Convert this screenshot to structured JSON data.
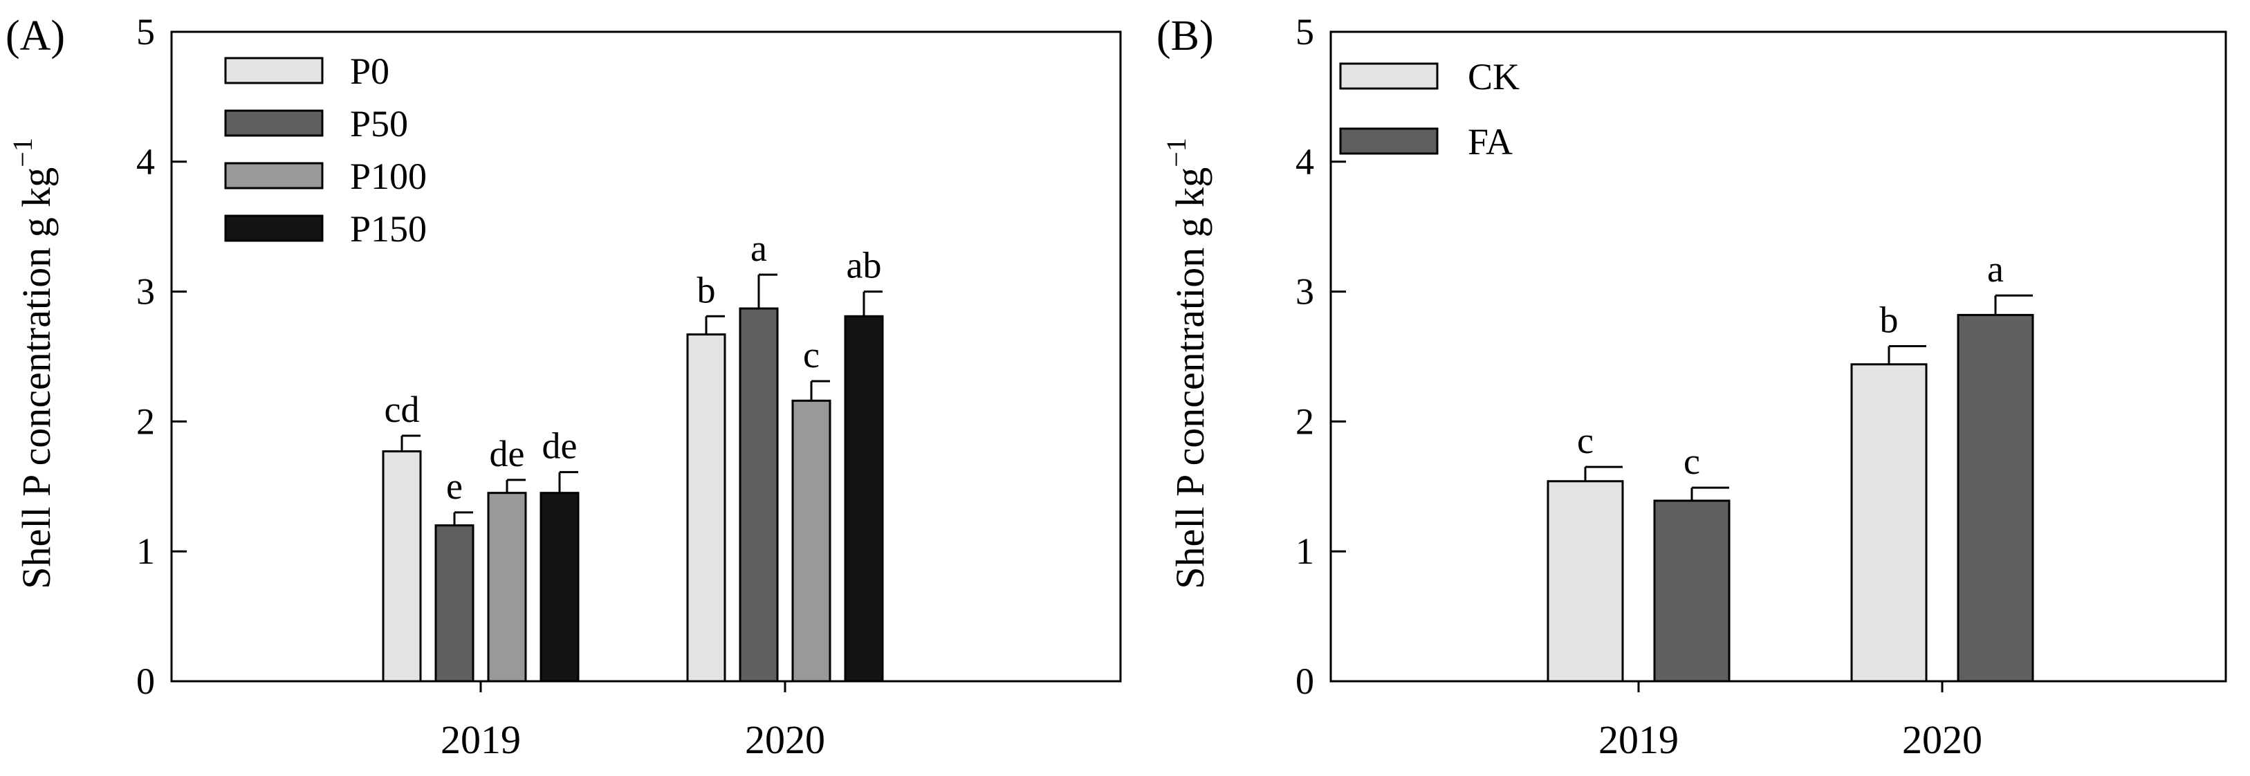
{
  "chart_data": [
    {
      "type": "bar",
      "panel_label": "(A)",
      "title": "",
      "xlabel": "",
      "ylabel": "Shell P concentration g kg",
      "ylabel_superscript": "−1",
      "ylim": [
        0,
        5
      ],
      "yticks": [
        "0",
        "1",
        "2",
        "3",
        "4",
        "5"
      ],
      "categories": [
        "2019",
        "2020"
      ],
      "legend_position": "top-left",
      "series": [
        {
          "name": "P0",
          "color": "#e3e3e6",
          "values": [
            1.77,
            2.67
          ],
          "errors": [
            0.12,
            0.14
          ],
          "labels": [
            "cd",
            "b"
          ]
        },
        {
          "name": "P50",
          "color": "#5f5f5f",
          "values": [
            1.2,
            2.87
          ],
          "errors": [
            0.1,
            0.26
          ],
          "labels": [
            "e",
            "a"
          ]
        },
        {
          "name": "P100",
          "color": "#999999",
          "values": [
            1.45,
            2.16
          ],
          "errors": [
            0.1,
            0.15
          ],
          "labels": [
            "de",
            "c"
          ]
        },
        {
          "name": "P150",
          "color": "#141414",
          "values": [
            1.45,
            2.81
          ],
          "errors": [
            0.16,
            0.19
          ],
          "labels": [
            "de",
            "ab"
          ]
        }
      ]
    },
    {
      "type": "bar",
      "panel_label": "(B)",
      "title": "",
      "xlabel": "",
      "ylabel": "Shell P concentration g kg",
      "ylabel_superscript": "−1",
      "ylim": [
        0,
        5
      ],
      "yticks": [
        "0",
        "1",
        "2",
        "3",
        "4",
        "5"
      ],
      "categories": [
        "2019",
        "2020"
      ],
      "legend_position": "top-left",
      "series": [
        {
          "name": "CK",
          "color": "#e3e3e6",
          "values": [
            1.54,
            2.44
          ],
          "errors": [
            0.11,
            0.14
          ],
          "labels": [
            "c",
            "b"
          ]
        },
        {
          "name": "FA",
          "color": "#5f5f5f",
          "values": [
            1.39,
            2.82
          ],
          "errors": [
            0.1,
            0.15
          ],
          "labels": [
            "c",
            "a"
          ]
        }
      ]
    }
  ]
}
